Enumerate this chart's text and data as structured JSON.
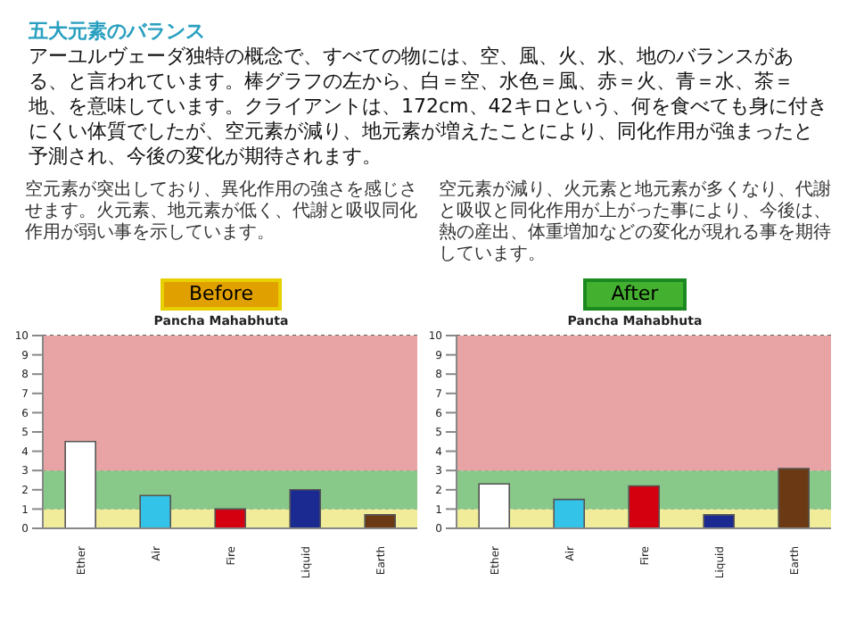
{
  "chart_data": [
    {
      "type": "other",
      "title": "五大元素のバランス",
      "annotations": [
        "アーユルヴェーダ独特の概念で、すべての物には、空、風、火、水、地のバランスがある、と言われています。棒グラフの左から、白＝空、水色＝風、赤＝火、青＝水、茶＝地、を意味しています。クライアントは、172cm、42キロという、何を食べても身に付きにくい体質でしたが、空元素が減り、地元素が増えたことにより、同化作用が強まったと予測され、今後の変化が期待されます。"
      ]
    },
    {
      "type": "bar",
      "title": "Pancha Mahabhuta",
      "subtitle": "Before",
      "annotations": [
        "空元素が突出しており、異化作用の強さを感じさせます。火元素、地元素が低く、代謝と吸収同化作用が弱い事を示しています。"
      ],
      "categories": [
        "Ether",
        "Air",
        "Fire",
        "Liquid",
        "Earth"
      ],
      "values": [
        4.5,
        1.7,
        1.0,
        2.0,
        0.7
      ],
      "colors": [
        "#ffffff",
        "#33c3e8",
        "#d40010",
        "#1a2a90",
        "#6b3a14"
      ],
      "ylim": [
        0,
        10
      ],
      "yticks": [
        0,
        1,
        2,
        3,
        4,
        5,
        6,
        7,
        8,
        9,
        10
      ],
      "grid": "y",
      "bands": [
        {
          "axis": "y",
          "from": 0,
          "to": 1,
          "color": "#f0ec9a"
        },
        {
          "axis": "y",
          "from": 1,
          "to": 3,
          "color": "#88c888"
        },
        {
          "axis": "y",
          "from": 3,
          "to": 10,
          "color": "#e8a4a4"
        }
      ]
    },
    {
      "type": "bar",
      "title": "Pancha Mahabhuta",
      "subtitle": "After",
      "annotations": [
        "空元素が減り、火元素と地元素が多くなり、代謝と吸収と同化作用が上がった事により、今後は、熱の産出、体重増加などの変化が現れる事を期待しています。"
      ],
      "categories": [
        "Ether",
        "Air",
        "Fire",
        "Liquid",
        "Earth"
      ],
      "values": [
        2.3,
        1.5,
        2.2,
        0.7,
        3.1
      ],
      "colors": [
        "#ffffff",
        "#33c3e8",
        "#d40010",
        "#1a2a90",
        "#6b3a14"
      ],
      "ylim": [
        0,
        10
      ],
      "yticks": [
        0,
        1,
        2,
        3,
        4,
        5,
        6,
        7,
        8,
        9,
        10
      ],
      "grid": "y",
      "bands": [
        {
          "axis": "y",
          "from": 0,
          "to": 1,
          "color": "#f0ec9a"
        },
        {
          "axis": "y",
          "from": 1,
          "to": 3,
          "color": "#88c888"
        },
        {
          "axis": "y",
          "from": 3,
          "to": 10,
          "color": "#e8a4a4"
        }
      ]
    }
  ]
}
